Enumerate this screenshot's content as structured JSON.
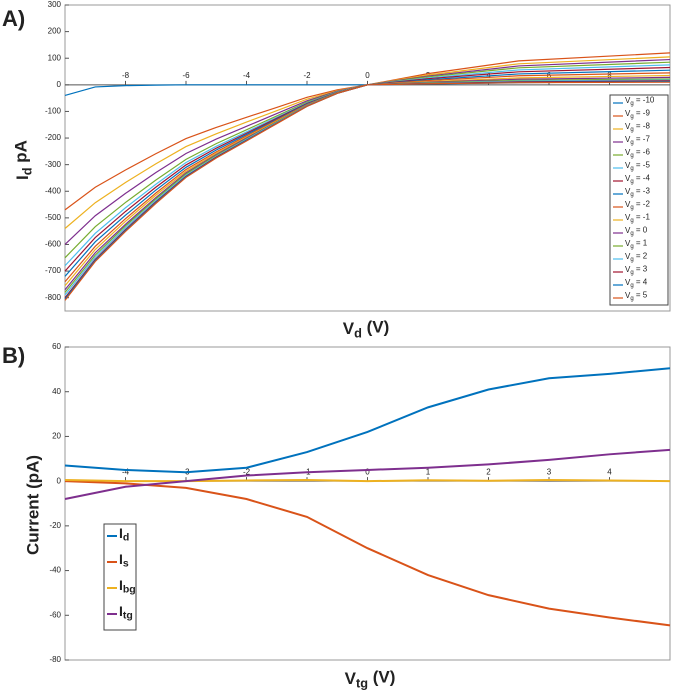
{
  "chart_data": [
    {
      "type": "line",
      "panel": "A)",
      "xlabel": "Vd  (V)",
      "ylabel": "Id  pA",
      "grid": false,
      "legend": "east",
      "xlim": [
        -10,
        10
      ],
      "ylim": [
        -850,
        300
      ],
      "xticks": [
        -8,
        -6,
        -4,
        -2,
        0,
        2,
        4,
        6,
        8
      ],
      "yticks": [
        300,
        200,
        100,
        0,
        -100,
        -200,
        -300,
        -400,
        -500,
        -600,
        -700,
        -800
      ],
      "x": [
        -10,
        -9,
        -8,
        -7,
        -6,
        -5,
        -4,
        -3,
        -2,
        -1,
        0,
        2,
        5,
        10
      ],
      "series": [
        {
          "name": "Vg = -10",
          "color": "#0072bd",
          "values": [
            -40,
            -8,
            -3,
            -1,
            0,
            0,
            0,
            0,
            0,
            0,
            0,
            3,
            8,
            12
          ]
        },
        {
          "name": "Vg = -9",
          "color": "#d95319",
          "values": [
            -470,
            -385,
            -320,
            -259,
            -202,
            -160,
            -122,
            -85,
            -47,
            -19,
            0,
            42,
            90,
            120
          ]
        },
        {
          "name": "Vg = -8",
          "color": "#edb120",
          "values": [
            -540,
            -443,
            -367,
            -297,
            -232,
            -184,
            -140,
            -97,
            -54,
            -22,
            0,
            37,
            79,
            105
          ]
        },
        {
          "name": "Vg = -7",
          "color": "#7e2f8e",
          "values": [
            -600,
            -492,
            -408,
            -330,
            -258,
            -204,
            -156,
            -108,
            -60,
            -24,
            0,
            33,
            71,
            95
          ]
        },
        {
          "name": "Vg = -6",
          "color": "#77ac30",
          "values": [
            -650,
            -533,
            -442,
            -358,
            -280,
            -221,
            -169,
            -117,
            -65,
            -26,
            0,
            30,
            64,
            85
          ]
        },
        {
          "name": "Vg = -5",
          "color": "#4dbeee",
          "values": [
            -680,
            -558,
            -462,
            -374,
            -292,
            -231,
            -177,
            -122,
            -68,
            -27,
            0,
            26,
            56,
            75
          ]
        },
        {
          "name": "Vg = -4",
          "color": "#a2142f",
          "values": [
            -700,
            -574,
            -476,
            -385,
            -301,
            -238,
            -182,
            -126,
            -70,
            -28,
            0,
            23,
            49,
            65
          ]
        },
        {
          "name": "Vg = -3",
          "color": "#0072bd",
          "values": [
            -720,
            -590,
            -490,
            -396,
            -310,
            -245,
            -187,
            -130,
            -72,
            -29,
            0,
            19,
            41,
            55
          ]
        },
        {
          "name": "Vg = -2",
          "color": "#d95319",
          "values": [
            -740,
            -607,
            -503,
            -407,
            -318,
            -252,
            -192,
            -133,
            -74,
            -30,
            0,
            16,
            34,
            45
          ]
        },
        {
          "name": "Vg = -1",
          "color": "#edb120",
          "values": [
            -755,
            -619,
            -513,
            -415,
            -325,
            -257,
            -196,
            -136,
            -76,
            -30,
            0,
            12,
            26,
            35
          ]
        },
        {
          "name": "Vg = 0",
          "color": "#7e2f8e",
          "values": [
            -770,
            -631,
            -524,
            -424,
            -331,
            -262,
            -200,
            -139,
            -77,
            -31,
            0,
            10,
            21,
            28
          ]
        },
        {
          "name": "Vg = 1",
          "color": "#77ac30",
          "values": [
            -780,
            -640,
            -530,
            -429,
            -335,
            -265,
            -203,
            -140,
            -78,
            -31,
            0,
            8,
            17,
            22
          ]
        },
        {
          "name": "Vg = 2",
          "color": "#4dbeee",
          "values": [
            -790,
            -648,
            -537,
            -435,
            -340,
            -269,
            -205,
            -142,
            -79,
            -32,
            0,
            6,
            14,
            18
          ]
        },
        {
          "name": "Vg = 3",
          "color": "#a2142f",
          "values": [
            -800,
            -656,
            -544,
            -440,
            -344,
            -272,
            -208,
            -144,
            -80,
            -32,
            0,
            5,
            11,
            15
          ]
        },
        {
          "name": "Vg = 4",
          "color": "#0072bd",
          "values": [
            -805,
            -660,
            -547,
            -443,
            -346,
            -274,
            -209,
            -145,
            -81,
            -32,
            0,
            4,
            9,
            12
          ]
        },
        {
          "name": "Vg = 5",
          "color": "#d95319",
          "values": [
            -810,
            -664,
            -551,
            -446,
            -348,
            -275,
            -211,
            -146,
            -81,
            -32,
            0,
            4,
            8,
            10
          ]
        }
      ]
    },
    {
      "type": "line",
      "panel": "B)",
      "xlabel": "Vtg  (V)",
      "ylabel": "Current  (pA)",
      "grid": false,
      "legend": "southwest",
      "xlim": [
        -5,
        5
      ],
      "ylim": [
        -80,
        60
      ],
      "xticks": [
        -4,
        -3,
        -2,
        -1,
        0,
        1,
        2,
        3,
        4
      ],
      "yticks": [
        60,
        40,
        20,
        0,
        -20,
        -40,
        -60,
        -80
      ],
      "x": [
        -5,
        -4,
        -3,
        -2,
        -1,
        0,
        1,
        2,
        3,
        4,
        5
      ],
      "series": [
        {
          "name": "Id",
          "color": "#0072bd",
          "values": [
            7,
            5,
            4,
            6,
            13,
            22,
            33,
            41,
            46,
            48,
            50.5
          ]
        },
        {
          "name": "Is",
          "color": "#d95319",
          "values": [
            0,
            -1,
            -3,
            -8,
            -16,
            -30,
            -42,
            -51,
            -57,
            -61,
            -64.5
          ]
        },
        {
          "name": "Ibg",
          "color": "#edb120",
          "values": [
            0.5,
            0,
            0,
            0.3,
            0.5,
            0,
            0.4,
            0.2,
            0.5,
            0.3,
            0
          ]
        },
        {
          "name": "Itg",
          "color": "#7e2f8e",
          "values": [
            -8,
            -2.5,
            0,
            2.5,
            4,
            5,
            6,
            7.5,
            9.5,
            12,
            14
          ]
        }
      ]
    }
  ]
}
